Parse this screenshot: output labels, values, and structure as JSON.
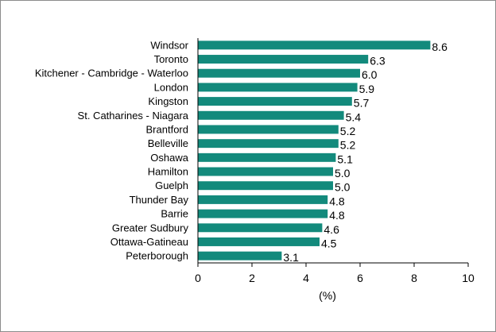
{
  "chart_data": {
    "type": "bar",
    "orientation": "horizontal",
    "categories": [
      "Windsor",
      "Toronto",
      "Kitchener - Cambridge - Waterloo",
      "London",
      "Kingston",
      "St. Catharines - Niagara",
      "Brantford",
      "Belleville",
      "Oshawa",
      "Hamilton",
      "Guelph",
      "Thunder Bay",
      "Barrie",
      "Greater Sudbury",
      "Ottawa-Gatineau",
      "Peterborough"
    ],
    "values": [
      8.6,
      6.3,
      6.0,
      5.9,
      5.7,
      5.4,
      5.2,
      5.2,
      5.1,
      5.0,
      5.0,
      4.8,
      4.8,
      4.6,
      4.5,
      3.1
    ],
    "value_labels": [
      "8.6",
      "6.3",
      "6.0",
      "5.9",
      "5.7",
      "5.4",
      "5.2",
      "5.2",
      "5.1",
      "5.0",
      "5.0",
      "4.8",
      "4.8",
      "4.6",
      "4.5",
      "3.1"
    ],
    "title": "",
    "xlabel": "(%)",
    "ylabel": "",
    "xlim": [
      0,
      10
    ],
    "xticks": [
      "0",
      "2",
      "4",
      "6",
      "8",
      "10"
    ],
    "grid": false,
    "legend": "none",
    "bar_color": "#138a7c"
  }
}
